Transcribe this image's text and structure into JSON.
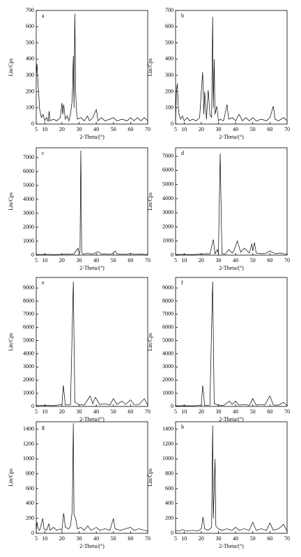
{
  "chart_data": [
    {
      "type": "line",
      "label": "a",
      "xlabel": "2-Theta/(°)",
      "ylabel": "Lin/Cps",
      "color": "#000",
      "xlim": [
        5,
        70
      ],
      "ylim": [
        0,
        700
      ],
      "xticks": [
        5,
        10,
        20,
        30,
        40,
        50,
        60,
        70
      ],
      "yticks": [
        0,
        100,
        200,
        300,
        400,
        500,
        600,
        700
      ],
      "x": [
        5,
        5.5,
        6,
        6.5,
        7,
        8,
        9,
        10,
        11,
        12,
        12.5,
        13,
        15,
        17,
        19,
        20,
        20.5,
        21,
        22,
        23,
        24,
        25,
        26,
        26.6,
        27,
        27.5,
        28,
        28.5,
        29,
        31,
        33,
        35,
        36,
        38,
        40,
        41,
        43,
        45,
        48,
        50,
        52,
        55,
        58,
        60,
        62,
        64,
        66,
        68,
        70
      ],
      "values": [
        300,
        370,
        250,
        180,
        90,
        40,
        60,
        20,
        40,
        15,
        80,
        20,
        30,
        20,
        40,
        130,
        60,
        120,
        30,
        50,
        20,
        60,
        150,
        420,
        100,
        680,
        200,
        80,
        30,
        40,
        20,
        50,
        20,
        40,
        90,
        20,
        40,
        20,
        30,
        40,
        20,
        30,
        20,
        40,
        20,
        40,
        20,
        40,
        20
      ]
    },
    {
      "type": "line",
      "label": "b",
      "xlabel": "2-Theta/(°)",
      "ylabel": "Lin/Cps",
      "color": "#000",
      "xlim": [
        5,
        70
      ],
      "ylim": [
        0,
        700
      ],
      "xticks": [
        5,
        10,
        20,
        30,
        40,
        50,
        60,
        70
      ],
      "yticks": [
        0,
        100,
        200,
        300,
        400,
        500,
        600,
        700
      ],
      "x": [
        5,
        5.5,
        6,
        6.5,
        7,
        8,
        9,
        10,
        12,
        13,
        15,
        17,
        19,
        20,
        20.8,
        21.5,
        22,
        23,
        24,
        25,
        26,
        26.6,
        27,
        27.5,
        28,
        29,
        30,
        31,
        33,
        35,
        36,
        38,
        40,
        42,
        44,
        46,
        48,
        50,
        52,
        55,
        58,
        60,
        62,
        63,
        65,
        68,
        70
      ],
      "values": [
        20,
        200,
        250,
        120,
        60,
        30,
        50,
        20,
        40,
        20,
        30,
        20,
        40,
        200,
        320,
        60,
        200,
        30,
        210,
        60,
        40,
        660,
        100,
        400,
        60,
        110,
        20,
        30,
        20,
        120,
        30,
        40,
        20,
        60,
        20,
        40,
        20,
        40,
        20,
        30,
        20,
        40,
        110,
        30,
        20,
        40,
        20
      ]
    },
    {
      "type": "line",
      "label": "c",
      "xlabel": "2-Theta/(°)",
      "ylabel": "Lin/Cps",
      "color": "#000",
      "xlim": [
        5,
        70
      ],
      "ylim": [
        0,
        7700
      ],
      "xticks": [
        5,
        10,
        20,
        30,
        40,
        50,
        60,
        70
      ],
      "yticks": [
        0,
        1000,
        2000,
        3000,
        4000,
        5000,
        6000,
        7000
      ],
      "x": [
        5,
        10,
        15,
        20,
        23,
        25,
        27,
        29.4,
        30,
        30.5,
        31,
        31.5,
        32,
        35,
        38,
        41,
        43,
        45,
        48,
        50,
        51,
        52,
        55,
        58,
        60,
        63,
        66,
        70
      ],
      "values": [
        40,
        60,
        40,
        60,
        80,
        60,
        100,
        500,
        100,
        300,
        7500,
        200,
        80,
        120,
        80,
        250,
        80,
        100,
        60,
        150,
        300,
        100,
        60,
        80,
        120,
        60,
        80,
        40
      ]
    },
    {
      "type": "line",
      "label": "d",
      "xlabel": "2-Theta/(°)",
      "ylabel": "Lin/Cps",
      "color": "#000",
      "xlim": [
        5,
        70
      ],
      "ylim": [
        0,
        7600
      ],
      "xticks": [
        5,
        10,
        20,
        30,
        40,
        50,
        60,
        70
      ],
      "yticks": [
        0,
        1000,
        2000,
        3000,
        4000,
        5000,
        6000,
        7000
      ],
      "x": [
        5,
        10,
        15,
        20,
        23,
        25,
        27,
        28,
        29.4,
        30,
        31,
        32,
        34,
        36,
        38,
        39,
        41,
        43,
        45,
        48,
        49.5,
        50,
        51,
        52,
        55,
        58,
        60,
        63,
        66,
        70
      ],
      "values": [
        40,
        60,
        40,
        80,
        100,
        80,
        1100,
        100,
        400,
        100,
        7200,
        100,
        80,
        400,
        150,
        300,
        1000,
        200,
        500,
        150,
        800,
        300,
        900,
        150,
        100,
        150,
        300,
        100,
        150,
        60
      ]
    },
    {
      "type": "line",
      "label": "e",
      "xlabel": "2-Theta/(°)",
      "ylabel": "Lin/Cps",
      "color": "#000",
      "xlim": [
        5,
        70
      ],
      "ylim": [
        0,
        9800
      ],
      "xticks": [
        5,
        10,
        20,
        30,
        40,
        50,
        60,
        70
      ],
      "yticks": [
        0,
        1000,
        2000,
        3000,
        4000,
        5000,
        6000,
        7000,
        8000,
        9000
      ],
      "x": [
        5,
        10,
        15,
        20,
        20.8,
        22,
        25,
        26.6,
        27.5,
        30,
        33,
        36.5,
        38,
        39.5,
        42,
        45,
        48,
        50,
        52,
        55,
        57,
        60,
        62,
        65,
        68,
        70
      ],
      "values": [
        60,
        80,
        60,
        150,
        1600,
        100,
        150,
        9500,
        300,
        150,
        100,
        800,
        200,
        700,
        150,
        200,
        100,
        600,
        150,
        400,
        150,
        500,
        150,
        150,
        600,
        100
      ]
    },
    {
      "type": "line",
      "label": "f",
      "xlabel": "2-Theta/(°)",
      "ylabel": "Lin/Cps",
      "color": "#000",
      "xlim": [
        5,
        70
      ],
      "ylim": [
        0,
        9800
      ],
      "xticks": [
        5,
        10,
        20,
        30,
        40,
        50,
        60,
        70
      ],
      "yticks": [
        0,
        1000,
        2000,
        3000,
        4000,
        5000,
        6000,
        7000,
        8000,
        9000
      ],
      "x": [
        5,
        10,
        15,
        20,
        20.8,
        22,
        25,
        26.6,
        27.5,
        30,
        33,
        36.5,
        38,
        40,
        42,
        45,
        48,
        50,
        52,
        55,
        57,
        60,
        62,
        65,
        68,
        70
      ],
      "values": [
        40,
        60,
        40,
        100,
        1600,
        80,
        100,
        9500,
        200,
        100,
        80,
        400,
        150,
        400,
        100,
        150,
        80,
        600,
        100,
        150,
        100,
        800,
        100,
        100,
        300,
        60
      ]
    },
    {
      "type": "line",
      "label": "g",
      "xlabel": "2-Theta/(°)",
      "ylabel": "Lin/Cps",
      "color": "#000",
      "xlim": [
        5,
        70
      ],
      "ylim": [
        0,
        1500
      ],
      "xticks": [
        5,
        10,
        20,
        30,
        40,
        50,
        60,
        70
      ],
      "yticks": [
        0,
        200,
        400,
        600,
        800,
        1000,
        1200,
        1400
      ],
      "x": [
        5,
        5.5,
        6,
        7,
        8.8,
        9.5,
        11,
        12.4,
        13,
        15,
        17,
        19,
        20,
        21,
        22,
        24,
        25,
        26,
        26.6,
        27,
        28,
        29,
        31,
        33,
        35,
        37,
        40,
        42,
        45,
        48,
        50,
        51,
        54,
        57,
        60,
        62,
        65,
        68,
        70
      ],
      "values": [
        40,
        150,
        60,
        40,
        200,
        60,
        40,
        130,
        40,
        80,
        40,
        60,
        40,
        270,
        80,
        60,
        100,
        300,
        1480,
        250,
        200,
        60,
        80,
        40,
        100,
        40,
        80,
        40,
        60,
        40,
        200,
        60,
        40,
        60,
        80,
        40,
        60,
        40,
        30
      ]
    },
    {
      "type": "line",
      "label": "h",
      "xlabel": "2-Theta/(°)",
      "ylabel": "Lin/Cps",
      "color": "#000",
      "xlim": [
        5,
        70
      ],
      "ylim": [
        0,
        1500
      ],
      "xticks": [
        5,
        10,
        20,
        30,
        40,
        50,
        60,
        70
      ],
      "yticks": [
        0,
        200,
        400,
        600,
        800,
        1000,
        1200,
        1400
      ],
      "x": [
        5,
        7,
        9,
        12,
        15,
        18,
        20,
        21,
        22,
        24,
        26,
        26.6,
        27,
        28,
        28.5,
        30,
        32,
        35,
        38,
        40,
        42,
        45,
        48,
        50,
        52,
        55,
        58,
        60,
        62,
        65,
        68,
        70
      ],
      "values": [
        40,
        30,
        50,
        30,
        40,
        30,
        60,
        220,
        60,
        40,
        80,
        1450,
        200,
        1000,
        100,
        60,
        40,
        60,
        40,
        80,
        40,
        60,
        40,
        150,
        40,
        60,
        40,
        140,
        40,
        60,
        120,
        30
      ]
    }
  ]
}
